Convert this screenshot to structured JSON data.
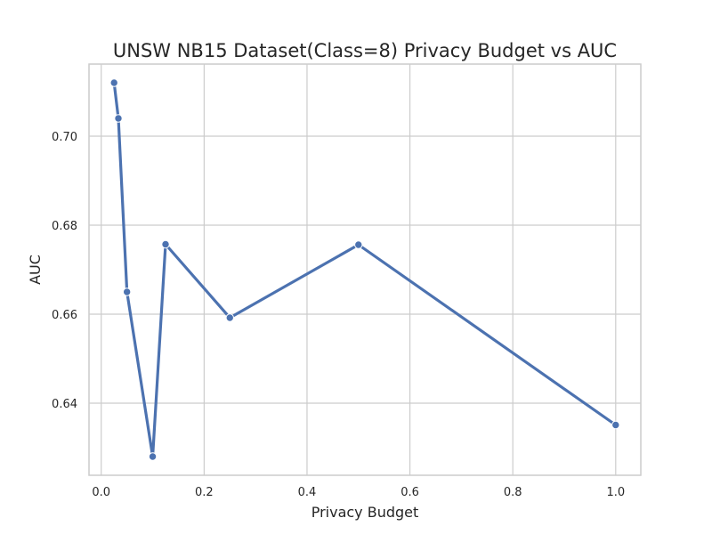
{
  "chart_data": {
    "type": "line",
    "title": "UNSW NB15 Dataset(Class=8) Privacy Budget vs AUC",
    "xlabel": "Privacy Budget",
    "ylabel": "AUC",
    "xlim": [
      -0.0238,
      1.0488
    ],
    "ylim": [
      0.6238,
      0.7162
    ],
    "xticks": [
      0.0,
      0.2,
      0.4,
      0.6,
      0.8,
      1.0
    ],
    "xtick_labels": [
      "0.0",
      "0.2",
      "0.4",
      "0.6",
      "0.8",
      "1.0"
    ],
    "yticks": [
      0.64,
      0.66,
      0.68,
      0.7
    ],
    "ytick_labels": [
      "0.64",
      "0.66",
      "0.68",
      "0.70"
    ],
    "grid": true,
    "series": [
      {
        "color": "#4c72b0",
        "x": [
          0.025,
          0.0333,
          0.05,
          0.1,
          0.125,
          0.25,
          0.5,
          1.0
        ],
        "y": [
          0.712,
          0.704,
          0.665,
          0.628,
          0.6757,
          0.6592,
          0.6756,
          0.6351
        ]
      }
    ]
  }
}
